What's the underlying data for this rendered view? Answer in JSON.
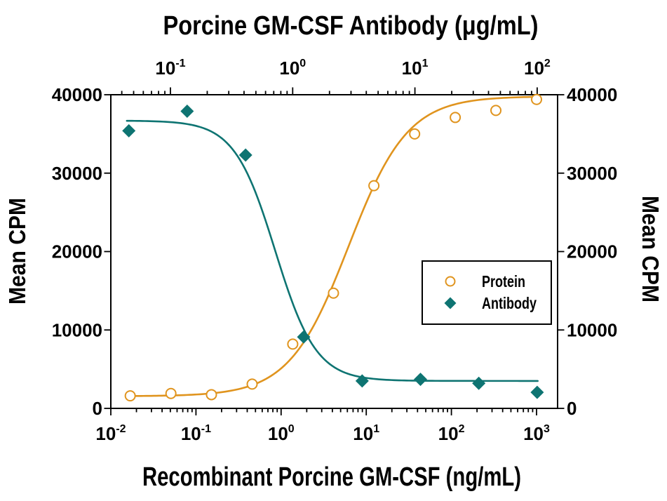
{
  "chart_data": {
    "type": "scatter",
    "title_top_axis": "Porcine GM-CSF Antibody (μg/mL)",
    "xlabel_bottom": "Recombinant Porcine GM-CSF (ng/mL)",
    "ylabel_left": "Mean CPM",
    "ylabel_right": "Mean CPM",
    "colors": {
      "protein": "#E0941E",
      "antibody": "#0E7472",
      "axis": "#000000",
      "background": "#ffffff"
    },
    "y_axis": {
      "min": 0,
      "max": 40000,
      "ticks": [
        0,
        10000,
        20000,
        30000,
        40000
      ],
      "tick_labels": [
        "0",
        "10000",
        "20000",
        "30000",
        "40000"
      ]
    },
    "bottom_axis": {
      "scale": "log",
      "unit": "ng/mL",
      "tick_base": "10",
      "tick_exponents": [
        -2,
        -1,
        0,
        1,
        2,
        3
      ]
    },
    "top_axis": {
      "scale": "log",
      "unit": "µg/mL",
      "tick_base": "10",
      "tick_exponents": [
        -1,
        0,
        1,
        2
      ]
    },
    "grid": false,
    "legend": {
      "position": "right-middle",
      "items": [
        {
          "label": "Protein",
          "marker": "open-circle",
          "color": "#E0941E"
        },
        {
          "label": "Antibody",
          "marker": "filled-diamond",
          "color": "#0E7472"
        }
      ]
    },
    "series": [
      {
        "name": "Protein",
        "axis": "bottom",
        "marker": "open-circle",
        "color": "#E0941E",
        "x": [
          0.0169,
          0.0508,
          0.152,
          0.457,
          1.37,
          4.12,
          12.3,
          37,
          111,
          333,
          1000
        ],
        "y": [
          1600,
          1900,
          1750,
          3100,
          8200,
          14700,
          28400,
          35000,
          37100,
          38000,
          39400
        ],
        "fit": {
          "shape": "4PL",
          "direction": "ascending",
          "plateau_low": 1550,
          "plateau_high": 39800,
          "midpoint": 6.2,
          "hill": 1.25,
          "curve_x_range": [
            0.016,
            1010
          ]
        }
      },
      {
        "name": "Antibody",
        "axis": "top",
        "marker": "filled-diamond",
        "color": "#0E7472",
        "x": [
          0.0457,
          0.137,
          0.412,
          1.23,
          3.7,
          11.1,
          33.3,
          100
        ],
        "y": [
          35400,
          37900,
          32300,
          9100,
          3500,
          3700,
          3200,
          2050
        ],
        "fit": {
          "shape": "4PL",
          "direction": "descending",
          "plateau_low": 3500,
          "plateau_high": 36700,
          "midpoint": 0.72,
          "hill": 2.6,
          "curve_x_range": [
            0.044,
            101
          ]
        }
      }
    ]
  }
}
